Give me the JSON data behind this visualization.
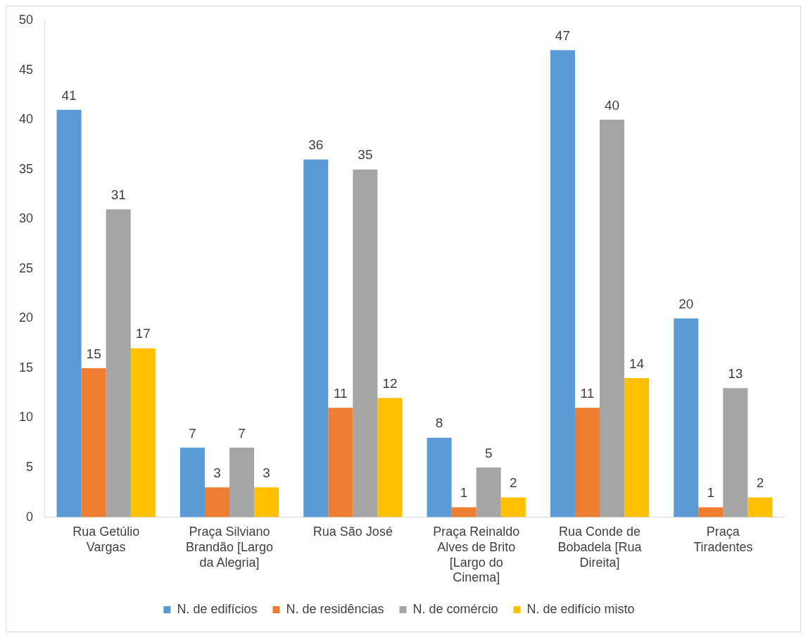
{
  "chart_data": {
    "type": "bar",
    "categories": [
      "Rua Getúlio Vargas",
      "Praça Silviano Brandão [Largo da Alegria]",
      "Rua São José",
      "Praça Reinaldo Alves de Brito [Largo do Cinema]",
      "Rua Conde de Bobadela [Rua Direita]",
      "Praça Tiradentes"
    ],
    "series": [
      {
        "name": "N. de edifícios",
        "color": "#5b9bd5",
        "values": [
          41,
          7,
          36,
          8,
          47,
          20
        ]
      },
      {
        "name": "N. de residências",
        "color": "#ed7d31",
        "values": [
          15,
          3,
          11,
          1,
          11,
          1
        ]
      },
      {
        "name": "N. de comércio",
        "color": "#a5a5a5",
        "values": [
          31,
          7,
          35,
          5,
          40,
          13
        ]
      },
      {
        "name": "N. de edifício misto",
        "color": "#ffc000",
        "values": [
          17,
          3,
          12,
          2,
          14,
          2
        ]
      }
    ],
    "ylim": [
      0,
      50
    ],
    "yticks": [
      0,
      5,
      10,
      15,
      20,
      25,
      30,
      35,
      40,
      45,
      50
    ],
    "grid": false,
    "legend": "bottom",
    "data_labels": true
  }
}
